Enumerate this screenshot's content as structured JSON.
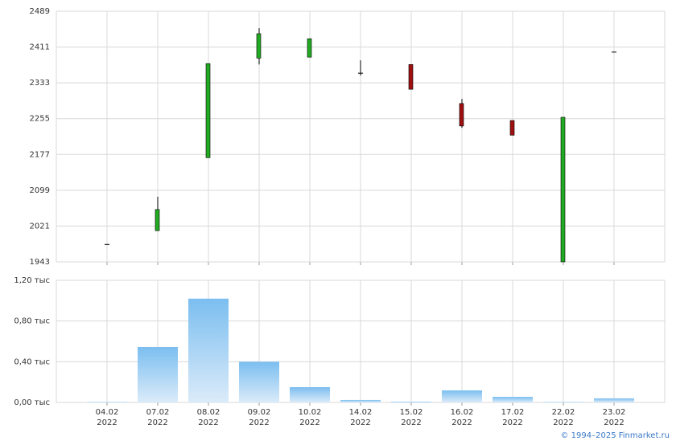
{
  "chart_data": [
    {
      "type": "candlestick",
      "open": [
        1981,
        2011,
        2170,
        2387,
        2389,
        2354,
        2373,
        2288,
        2251,
        1943,
        2400
      ],
      "high": [
        1981,
        2085,
        2375,
        2452,
        2430,
        2382,
        2373,
        2298,
        2251,
        2258,
        2400
      ],
      "low": [
        1981,
        2011,
        2170,
        2373,
        2389,
        2349,
        2319,
        2235,
        2219,
        1943,
        2400
      ],
      "close": [
        1981,
        2057,
        2375,
        2440,
        2429,
        2354,
        2319,
        2239,
        2219,
        2258,
        2400
      ],
      "up_color": "#22aa22",
      "down_color": "#a01010",
      "ylim": [
        1943,
        2489
      ],
      "yticks": [
        1943,
        2021,
        2099,
        2177,
        2255,
        2333,
        2411,
        2489
      ],
      "grid": true
    },
    {
      "type": "bar",
      "categories": [
        "04.02 2022",
        "07.02 2022",
        "08.02 2022",
        "09.02 2022",
        "10.02 2022",
        "14.02 2022",
        "15.02 2022",
        "16.02 2022",
        "17.02 2022",
        "22.02 2022",
        "23.02 2022"
      ],
      "values": [
        0.005,
        0.545,
        1.02,
        0.4,
        0.15,
        0.024,
        0.008,
        0.118,
        0.055,
        0.005,
        0.04
      ],
      "color": "#7bbef0",
      "ylim": [
        0,
        1.2
      ],
      "yticks": [
        {
          "value": 0,
          "label": "0,00 тыс"
        },
        {
          "value": 0.4,
          "label": "0,40 тыс"
        },
        {
          "value": 0.8,
          "label": "0,80 тыс"
        },
        {
          "value": 1.2,
          "label": "1,20 тыс"
        }
      ],
      "grid": true
    }
  ],
  "footer": "© 1994–2025 Finmarket.ru"
}
